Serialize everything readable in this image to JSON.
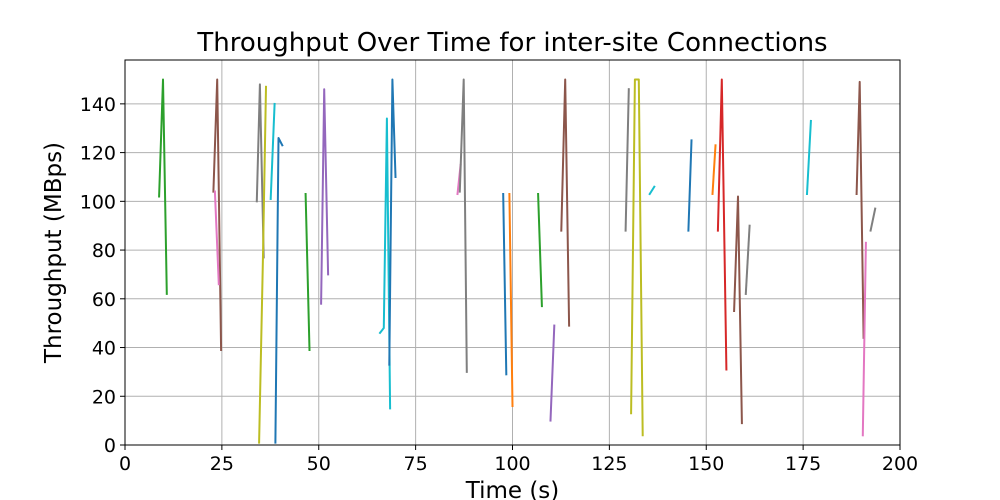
{
  "chart_data": {
    "type": "line",
    "title": "Throughput Over Time for inter-site Connections",
    "xlabel": "Time (s)",
    "ylabel": "Throughput (MBps)",
    "xlim": [
      0,
      200
    ],
    "ylim": [
      0,
      158
    ],
    "xticks": [
      0,
      25,
      50,
      75,
      100,
      125,
      150,
      175,
      200
    ],
    "yticks": [
      0,
      20,
      40,
      60,
      80,
      100,
      120,
      140
    ],
    "grid": true,
    "series": [
      {
        "color": "#2ca02c",
        "points": [
          [
            8.8,
            102
          ],
          [
            9.8,
            150
          ],
          [
            10.8,
            62
          ]
        ]
      },
      {
        "color": "#8c564b",
        "points": [
          [
            22.8,
            104
          ],
          [
            23.8,
            150
          ],
          [
            24.8,
            39
          ]
        ]
      },
      {
        "color": "#e377c2",
        "points": [
          [
            23.2,
            104
          ],
          [
            24.2,
            66
          ]
        ]
      },
      {
        "color": "#7f7f7f",
        "points": [
          [
            34.0,
            100
          ],
          [
            34.8,
            148
          ],
          [
            35.8,
            77
          ]
        ]
      },
      {
        "color": "#bcbd22",
        "points": [
          [
            34.6,
            1
          ],
          [
            35.6,
            78
          ],
          [
            36.4,
            147
          ]
        ]
      },
      {
        "color": "#17becf",
        "points": [
          [
            37.6,
            101
          ],
          [
            38.6,
            140
          ]
        ]
      },
      {
        "color": "#1f77b4",
        "points": [
          [
            38.8,
            1
          ],
          [
            39.6,
            126
          ],
          [
            40.6,
            123
          ]
        ]
      },
      {
        "color": "#2ca02c",
        "points": [
          [
            46.6,
            103
          ],
          [
            47.6,
            39
          ]
        ]
      },
      {
        "color": "#9467bd",
        "points": [
          [
            50.6,
            58
          ],
          [
            51.4,
            146
          ],
          [
            52.4,
            70
          ]
        ]
      },
      {
        "color": "#17becf",
        "points": [
          [
            65.8,
            46
          ],
          [
            66.8,
            48
          ],
          [
            67.6,
            134
          ],
          [
            68.4,
            15
          ]
        ]
      },
      {
        "color": "#1f77b4",
        "points": [
          [
            68.2,
            33
          ],
          [
            69.0,
            150
          ],
          [
            69.8,
            110
          ]
        ]
      },
      {
        "color": "#e377c2",
        "points": [
          [
            85.8,
            103
          ],
          [
            86.6,
            115
          ]
        ]
      },
      {
        "color": "#7f7f7f",
        "points": [
          [
            86.4,
            104
          ],
          [
            87.4,
            150
          ],
          [
            88.2,
            30
          ]
        ]
      },
      {
        "color": "#1f77b4",
        "points": [
          [
            97.6,
            103
          ],
          [
            98.4,
            29
          ]
        ]
      },
      {
        "color": "#ff7f0e",
        "points": [
          [
            99.2,
            103
          ],
          [
            100.0,
            16
          ]
        ]
      },
      {
        "color": "#2ca02c",
        "points": [
          [
            106.6,
            103
          ],
          [
            107.6,
            57
          ]
        ]
      },
      {
        "color": "#9467bd",
        "points": [
          [
            109.8,
            10
          ],
          [
            110.8,
            49
          ]
        ]
      },
      {
        "color": "#8c564b",
        "points": [
          [
            112.6,
            88
          ],
          [
            113.6,
            150
          ],
          [
            114.6,
            49
          ]
        ]
      },
      {
        "color": "#7f7f7f",
        "points": [
          [
            129.2,
            88
          ],
          [
            130.0,
            146
          ]
        ]
      },
      {
        "color": "#bcbd22",
        "points": [
          [
            130.6,
            13
          ],
          [
            131.6,
            150
          ],
          [
            132.6,
            150
          ],
          [
            133.6,
            4
          ]
        ]
      },
      {
        "color": "#17becf",
        "points": [
          [
            135.4,
            103
          ],
          [
            136.6,
            106
          ]
        ]
      },
      {
        "color": "#1f77b4",
        "points": [
          [
            145.4,
            88
          ],
          [
            146.2,
            125
          ]
        ]
      },
      {
        "color": "#ff7f0e",
        "points": [
          [
            151.6,
            103
          ],
          [
            152.4,
            123
          ]
        ]
      },
      {
        "color": "#d62728",
        "points": [
          [
            153.0,
            88
          ],
          [
            154.0,
            150
          ],
          [
            155.2,
            31
          ]
        ]
      },
      {
        "color": "#8c564b",
        "points": [
          [
            157.2,
            55
          ],
          [
            158.2,
            102
          ],
          [
            159.2,
            9
          ]
        ]
      },
      {
        "color": "#7f7f7f",
        "points": [
          [
            160.2,
            62
          ],
          [
            161.2,
            90
          ]
        ]
      },
      {
        "color": "#17becf",
        "points": [
          [
            176.0,
            103
          ],
          [
            177.0,
            133
          ]
        ]
      },
      {
        "color": "#8c564b",
        "points": [
          [
            188.8,
            103
          ],
          [
            189.6,
            149
          ],
          [
            190.6,
            44
          ]
        ]
      },
      {
        "color": "#e377c2",
        "points": [
          [
            190.4,
            4
          ],
          [
            191.2,
            83
          ]
        ]
      },
      {
        "color": "#7f7f7f",
        "points": [
          [
            192.4,
            88
          ],
          [
            193.6,
            97
          ]
        ]
      }
    ]
  }
}
